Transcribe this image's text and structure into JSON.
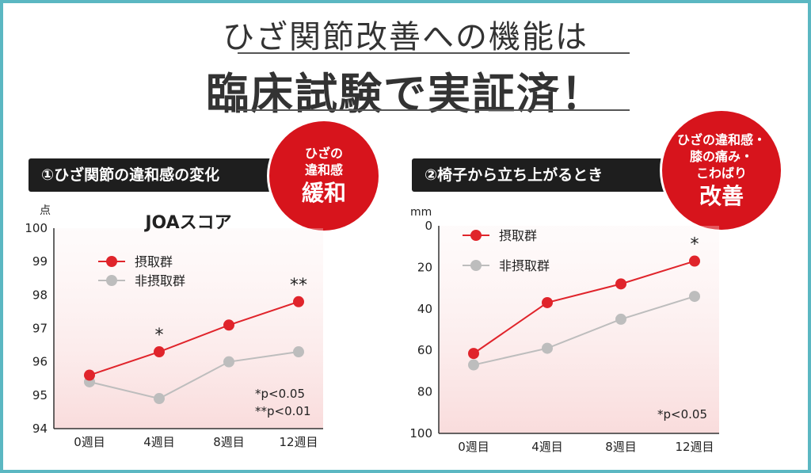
{
  "header": {
    "line1": "ひざ関節改善への機能は",
    "line2": "臨床試験で実証済！"
  },
  "panels": [
    {
      "banner": "①ひざ関節の違和感の変化",
      "badge": {
        "small_lines": [
          "ひざの",
          "違和感"
        ],
        "big": "緩和"
      },
      "notes": [
        "*p<0.05",
        "**p<0.01"
      ]
    },
    {
      "banner": "②椅子から立ち上がるとき",
      "badge": {
        "small_lines": [
          "ひざの違和感・",
          "膝の痛み・",
          "こわばり"
        ],
        "big": "改善"
      },
      "notes": [
        "*p<0.05"
      ]
    }
  ],
  "colors": {
    "taking": "#e0242b",
    "nontaking": "#bdbdbd",
    "badge": "#d7141c",
    "frame": "#5bb7c2"
  },
  "chart_data": [
    {
      "type": "line",
      "title": "JOAスコア",
      "ylabel": "点",
      "categories": [
        "0週目",
        "4週目",
        "8週目",
        "12週目"
      ],
      "ylim": [
        94,
        100
      ],
      "yticks": [
        "94",
        "95",
        "96",
        "97",
        "98",
        "99",
        "100"
      ],
      "series": [
        {
          "name": "摂取群",
          "values": [
            95.6,
            96.3,
            97.1,
            97.8
          ],
          "marks": [
            "",
            "*",
            "",
            "**"
          ]
        },
        {
          "name": "非摂取群",
          "values": [
            95.4,
            94.9,
            96.0,
            96.3
          ],
          "marks": [
            "",
            "",
            "",
            ""
          ]
        }
      ],
      "legend": "top-left"
    },
    {
      "type": "line",
      "title": "",
      "ylabel": "mm",
      "categories": [
        "0週目",
        "4週目",
        "8週目",
        "12週目"
      ],
      "ylim": [
        0,
        100
      ],
      "y_reversed": true,
      "yticks": [
        "0",
        "20",
        "40",
        "60",
        "80",
        "100"
      ],
      "series": [
        {
          "name": "摂取群",
          "values": [
            61.5,
            37,
            28,
            17
          ],
          "marks": [
            "",
            "",
            "",
            "*"
          ]
        },
        {
          "name": "非摂取群",
          "values": [
            67,
            59,
            45,
            34
          ],
          "marks": [
            "",
            "",
            "",
            ""
          ]
        }
      ],
      "legend": "top-left"
    }
  ]
}
